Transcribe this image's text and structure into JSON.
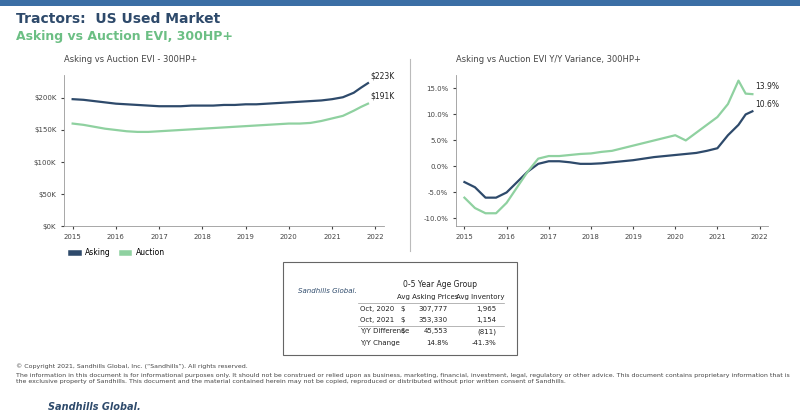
{
  "header": {
    "title": "Tractors:  US Used Market",
    "subtitle": "Asking vs Auction EVI, 300HP+"
  },
  "chart_data": [
    {
      "type": "line",
      "title": "Asking vs Auction EVI - 300HP+",
      "x": [
        2015.0,
        2015.25,
        2015.5,
        2015.75,
        2016.0,
        2016.25,
        2016.5,
        2016.75,
        2017.0,
        2017.25,
        2017.5,
        2017.75,
        2018.0,
        2018.25,
        2018.5,
        2018.75,
        2019.0,
        2019.25,
        2019.5,
        2019.75,
        2020.0,
        2020.25,
        2020.5,
        2020.75,
        2021.0,
        2021.25,
        2021.5,
        2021.67,
        2021.83
      ],
      "series": [
        {
          "name": "Asking",
          "color": "#2e4a6b",
          "values": [
            198000,
            197000,
            195000,
            193000,
            191000,
            190000,
            189000,
            188000,
            187000,
            187000,
            187000,
            188000,
            188000,
            188000,
            189000,
            189000,
            190000,
            190000,
            191000,
            192000,
            193000,
            194000,
            195000,
            196000,
            198000,
            201000,
            208000,
            216000,
            223000
          ]
        },
        {
          "name": "Auction",
          "color": "#8fd1a0",
          "values": [
            160000,
            158000,
            155000,
            152000,
            150000,
            148000,
            147000,
            147000,
            148000,
            149000,
            150000,
            151000,
            152000,
            153000,
            154000,
            155000,
            156000,
            157000,
            158000,
            159000,
            160000,
            160000,
            161000,
            164000,
            168000,
            172000,
            180000,
            186000,
            191000
          ]
        }
      ],
      "annotations": [
        {
          "text": "$223K",
          "x": 2021.83,
          "y": 223000
        },
        {
          "text": "$191K",
          "x": 2021.83,
          "y": 191000
        }
      ],
      "xlim": [
        2014.8,
        2022.2
      ],
      "xticks": [
        2015,
        2016,
        2017,
        2018,
        2019,
        2020,
        2021,
        2022
      ],
      "ylim": [
        0,
        235000
      ],
      "yticks": [
        {
          "value": 0,
          "label": "$0K"
        },
        {
          "value": 50000,
          "label": "$50K"
        },
        {
          "value": 100000,
          "label": "$100K"
        },
        {
          "value": 150000,
          "label": "$150K"
        },
        {
          "value": 200000,
          "label": "$200K"
        }
      ],
      "legend": "lower left",
      "grid": false
    },
    {
      "type": "line",
      "title": "Asking vs Auction EVI Y/Y Variance, 300HP+",
      "x": [
        2015.0,
        2015.25,
        2015.5,
        2015.75,
        2016.0,
        2016.25,
        2016.5,
        2016.75,
        2017.0,
        2017.25,
        2017.5,
        2017.75,
        2018.0,
        2018.25,
        2018.5,
        2018.75,
        2019.0,
        2019.25,
        2019.5,
        2019.75,
        2020.0,
        2020.25,
        2020.5,
        2020.75,
        2021.0,
        2021.25,
        2021.5,
        2021.67,
        2021.83
      ],
      "series": [
        {
          "color": "#2e4a6b",
          "values": [
            -3,
            -4,
            -6,
            -6,
            -5,
            -3,
            -1,
            0.5,
            1,
            1,
            0.8,
            0.5,
            0.5,
            0.6,
            0.8,
            1,
            1.2,
            1.5,
            1.8,
            2,
            2.2,
            2.4,
            2.6,
            3,
            3.5,
            6,
            8,
            10,
            10.6
          ]
        },
        {
          "color": "#8fd1a0",
          "values": [
            -6,
            -8,
            -9,
            -9,
            -7,
            -4,
            -1,
            1.5,
            2,
            2,
            2.2,
            2.4,
            2.5,
            2.8,
            3,
            3.5,
            4,
            4.5,
            5,
            5.5,
            6,
            5,
            6.5,
            8,
            9.5,
            12,
            16.5,
            14,
            13.9
          ]
        }
      ],
      "annotations": [
        {
          "text": "13.9%",
          "x": 2021.83,
          "y": 13.9
        },
        {
          "text": "10.6%",
          "x": 2021.83,
          "y": 10.6
        }
      ],
      "xlim": [
        2014.8,
        2022.2
      ],
      "xticks": [
        2015,
        2016,
        2017,
        2018,
        2019,
        2020,
        2021,
        2022
      ],
      "ylim": [
        -11.5,
        17.5
      ],
      "yticks": [
        {
          "value": -10,
          "label": "-10.0%"
        },
        {
          "value": -5,
          "label": "-5.0%"
        },
        {
          "value": 0,
          "label": "0.0%"
        },
        {
          "value": 5,
          "label": "5.0%"
        },
        {
          "value": 10,
          "label": "10.0%"
        },
        {
          "value": 15,
          "label": "15.0%"
        }
      ],
      "grid": false
    }
  ],
  "table": {
    "logo": "Sandhills Global.",
    "title": "0-5 Year Age Group",
    "columns": [
      "Avg Asking Prices",
      "Avg Inventory"
    ],
    "rows": [
      [
        "Oct, 2020",
        "$",
        "307,777",
        "1,965"
      ],
      [
        "Oct, 2021",
        "$",
        "353,330",
        "1,154"
      ],
      [
        "Y/Y Difference",
        "$",
        "45,553",
        "(811)"
      ],
      [
        "Y/Y Change",
        "",
        "14.8%",
        "-41.3%"
      ]
    ]
  },
  "footer": {
    "copyright": "© Copyright 2021, Sandhills Global, Inc. (“Sandhills”). All rights reserved.",
    "disclaimer": "The information in this document is for informational purposes only. It should not be construed or relied upon as business, marketing, financial, investment, legal, regulatory or other advice. This document contains proprietary information that is the exclusive property of Sandhills. This document and the material contained herein may not be copied, reproduced or distributed without prior written consent of Sandhills.",
    "logo": "Sandhills Global."
  }
}
